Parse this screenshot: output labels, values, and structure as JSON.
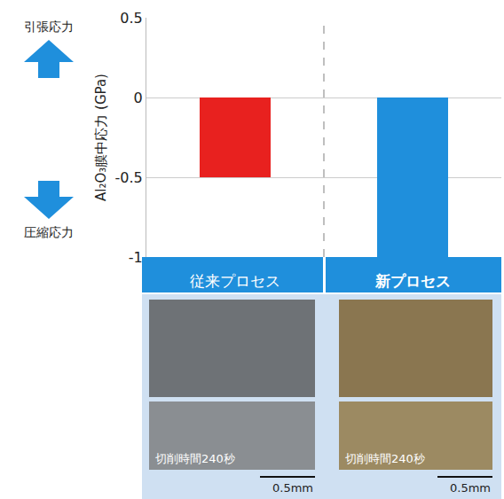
{
  "chart_data": {
    "type": "bar",
    "categories": [
      "従来プロセス",
      "新プロセス"
    ],
    "values": [
      -0.5,
      -1.0
    ],
    "colors": [
      "#e8211f",
      "#1f8fdc"
    ],
    "ylabel": "Al₂O₃膜中応力 (GPa)",
    "ylim": [
      -1,
      0.5
    ],
    "yticks": [
      -1,
      -0.5,
      0,
      0.5
    ],
    "grid": true,
    "annotations": [
      "引張応力",
      "圧縮応力"
    ],
    "photos": [
      {
        "caption": "切削時間240秒",
        "scale": "0.5mm"
      },
      {
        "caption": "切削時間240秒",
        "scale": "0.5mm"
      }
    ]
  }
}
